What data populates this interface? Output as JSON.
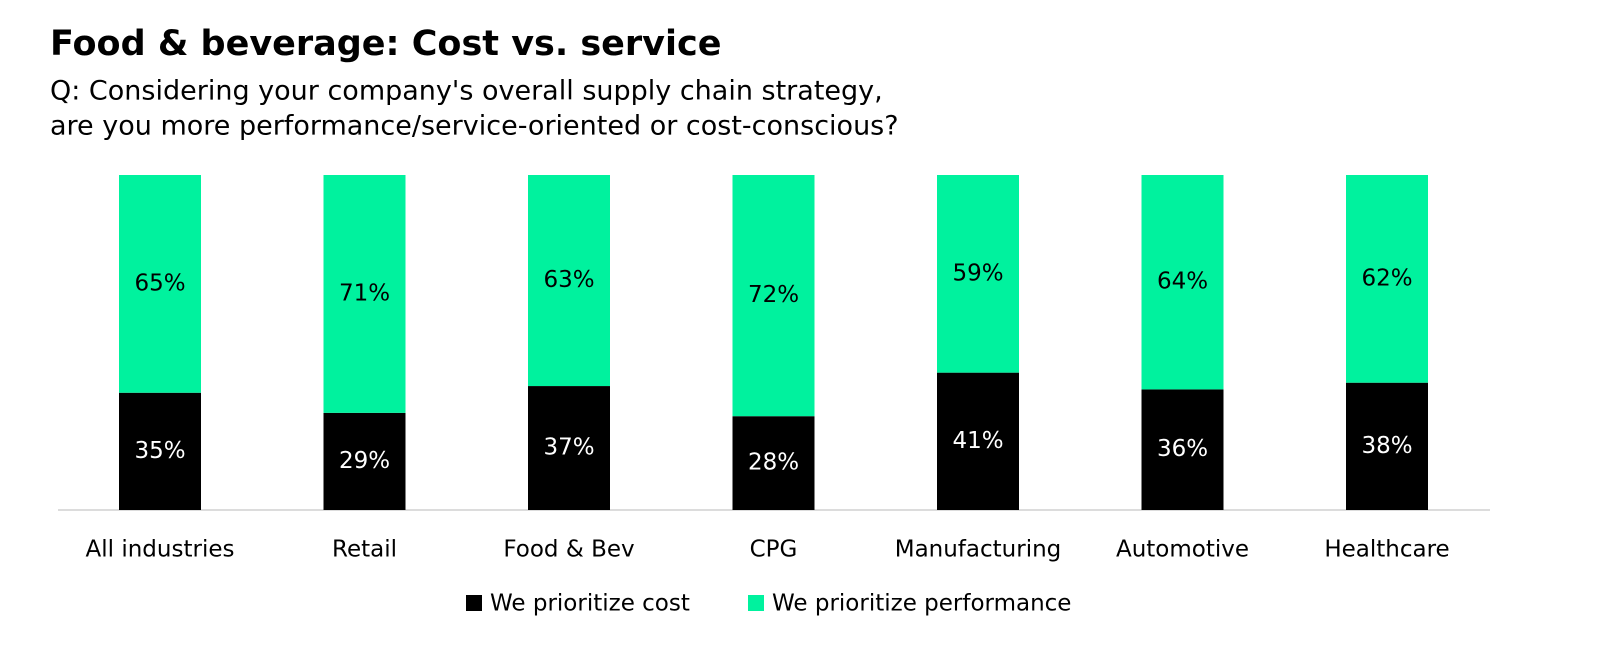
{
  "chart_data": {
    "type": "stacked_bar",
    "title": "Food & beverage: Cost vs. service",
    "subtitle": [
      "Q: Considering your company's overall supply chain strategy,",
      "are you more performance/service-oriented or cost-conscious?"
    ],
    "categories": [
      "All industries",
      "Retail",
      "Food & Bev",
      "CPG",
      "Manufacturing",
      "Automotive",
      "Healthcare"
    ],
    "series": [
      {
        "name": "We prioritize cost",
        "color": "#000000",
        "label_color": "#ffffff",
        "values": [
          35,
          29,
          37,
          28,
          41,
          36,
          38
        ],
        "value_labels": [
          "35%",
          "29%",
          "37%",
          "28%",
          "41%",
          "36%",
          "38%"
        ]
      },
      {
        "name": "We prioritize performance",
        "color": "#00f29e",
        "label_color": "#000000",
        "values": [
          65,
          71,
          63,
          72,
          59,
          64,
          62
        ],
        "value_labels": [
          "65%",
          "71%",
          "63%",
          "72%",
          "59%",
          "64%",
          "62%"
        ]
      }
    ],
    "legend": "bottom"
  }
}
